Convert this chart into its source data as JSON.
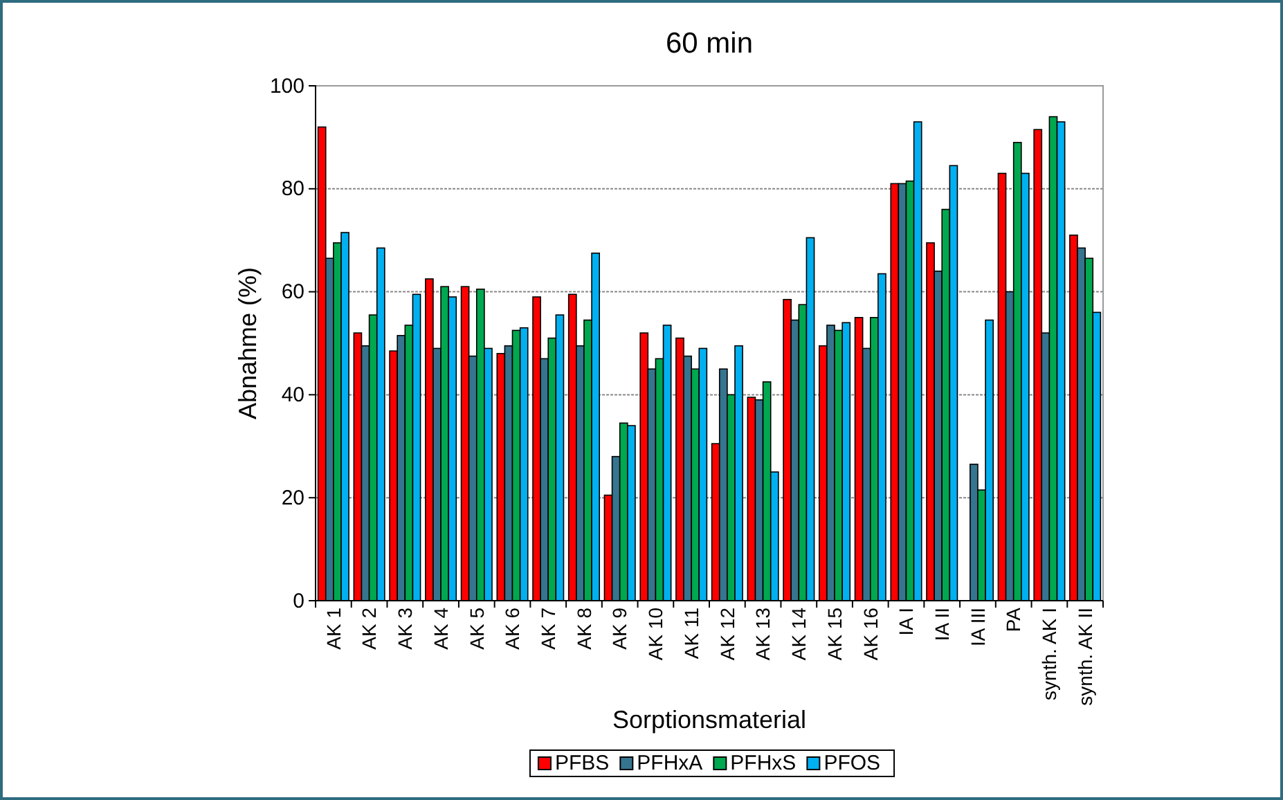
{
  "chart_data": {
    "type": "bar",
    "title": "60 min",
    "xlabel": "Sorptionsmaterial",
    "ylabel": "Abnahme (%)",
    "categories": [
      "AK 1",
      "AK 2",
      "AK 3",
      "AK 4",
      "AK 5",
      "AK 6",
      "AK 7",
      "AK 8",
      "AK 9",
      "AK 10",
      "AK 11",
      "AK 12",
      "AK 13",
      "AK 14",
      "AK 15",
      "AK 16",
      "IA I",
      "IA II",
      "IA III",
      "PA",
      "synth. AK I",
      "synth. AK II"
    ],
    "series": [
      {
        "name": "PFBS",
        "color": "#ff0000",
        "values": [
          92,
          52,
          48.5,
          62.5,
          61,
          48,
          59,
          59.5,
          20.5,
          52,
          51,
          30.5,
          39.5,
          58.5,
          49.5,
          55,
          81,
          69.5,
          null,
          83,
          91.5,
          71
        ]
      },
      {
        "name": "PFHxA",
        "color": "#35758f",
        "values": [
          66.5,
          49.5,
          51.5,
          49,
          47.5,
          49.5,
          47,
          49.5,
          28,
          45,
          47.5,
          45,
          39,
          54.5,
          53.5,
          49,
          81,
          64,
          26.5,
          60,
          52,
          68.5
        ]
      },
      {
        "name": "PFHxS",
        "color": "#00a84f",
        "values": [
          69.5,
          55.5,
          53.5,
          61,
          60.5,
          52.5,
          51,
          54.5,
          34.5,
          47,
          45,
          40,
          42.5,
          57.5,
          52.5,
          55,
          81.5,
          76,
          21.5,
          89,
          94,
          66.5
        ]
      },
      {
        "name": "PFOS",
        "color": "#00b0f0",
        "values": [
          71.5,
          68.5,
          59.5,
          59,
          49,
          53,
          55.5,
          67.5,
          34,
          53.5,
          49,
          49.5,
          25,
          70.5,
          54,
          63.5,
          93,
          84.5,
          54.5,
          83,
          93,
          56
        ]
      }
    ],
    "ylim": [
      0,
      100
    ],
    "yticks": [
      0,
      20,
      40,
      60,
      80,
      100
    ],
    "grid": "y",
    "legend": "bottom"
  }
}
